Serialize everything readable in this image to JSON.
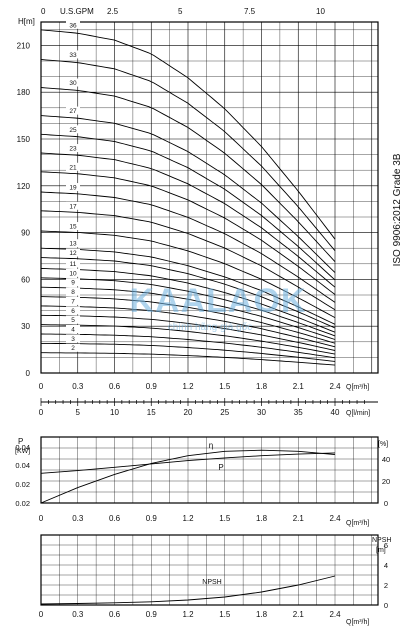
{
  "header": {
    "usgpm_label": "U.S.GPM",
    "usgpm_ticks": [
      "0",
      "2.5",
      "5",
      "7.5",
      "10"
    ]
  },
  "side_note": "ISO  9906:2012   Grade 3B",
  "watermark": {
    "title": "KAALAOK",
    "subtitle": "chính hãng giá gốc"
  },
  "chart_data": [
    {
      "type": "line",
      "id": "head",
      "ylabel": "H[m]",
      "xlabel": "Q[m³/h]",
      "ylim": [
        0,
        225
      ],
      "xlim": [
        0,
        2.4
      ],
      "yticks": [
        "0",
        "30",
        "60",
        "90",
        "120",
        "150",
        "180",
        "210"
      ],
      "xticks": [
        "0",
        "0.3",
        "0.6",
        "0.9",
        "1.2",
        "1.5",
        "1.8",
        "2.1",
        "2.4"
      ],
      "grid": true,
      "curve_x": [
        0,
        0.3,
        0.6,
        0.9,
        1.2,
        1.5,
        1.8,
        2.1,
        2.4
      ],
      "curve_rel": [
        1.0,
        0.99,
        0.97,
        0.93,
        0.86,
        0.77,
        0.66,
        0.53,
        0.39
      ],
      "series": [
        {
          "name": "36",
          "shutoff": 220
        },
        {
          "name": "33",
          "shutoff": 201
        },
        {
          "name": "30",
          "shutoff": 183
        },
        {
          "name": "27",
          "shutoff": 165
        },
        {
          "name": "25",
          "shutoff": 153
        },
        {
          "name": "23",
          "shutoff": 141
        },
        {
          "name": "21",
          "shutoff": 129
        },
        {
          "name": "19",
          "shutoff": 116
        },
        {
          "name": "17",
          "shutoff": 104
        },
        {
          "name": "15",
          "shutoff": 91
        },
        {
          "name": "13",
          "shutoff": 80
        },
        {
          "name": "12",
          "shutoff": 74
        },
        {
          "name": "11",
          "shutoff": 67
        },
        {
          "name": "10",
          "shutoff": 61
        },
        {
          "name": "9",
          "shutoff": 55
        },
        {
          "name": "8",
          "shutoff": 49
        },
        {
          "name": "7",
          "shutoff": 43
        },
        {
          "name": "6",
          "shutoff": 37
        },
        {
          "name": "5",
          "shutoff": 31
        },
        {
          "name": "4",
          "shutoff": 25
        },
        {
          "name": "3",
          "shutoff": 19
        },
        {
          "name": "2",
          "shutoff": 13
        }
      ],
      "secondary_axis": {
        "label": "Q[l/min]",
        "ticks": [
          "0",
          "5",
          "10",
          "15",
          "20",
          "25",
          "30",
          "35",
          "40"
        ],
        "range": [
          0,
          40
        ]
      }
    },
    {
      "type": "line",
      "id": "power",
      "ylabel_left": "P",
      "ylabel_left_unit": "[KW]",
      "ylabel_right": "[%]",
      "xlabel": "Q[m³/h]",
      "left_ticks": [
        "0.02",
        "0.02",
        "0.04",
        "0.04"
      ],
      "right_ticks": [
        "0",
        "20",
        "40"
      ],
      "right_ylim": [
        0,
        60
      ],
      "xticks": [
        "0",
        "0.3",
        "0.6",
        "0.9",
        "1.2",
        "1.5",
        "1.8",
        "2.1",
        "2.4"
      ],
      "xlim": [
        0,
        2.4
      ],
      "grid": true,
      "series": [
        {
          "name": "η",
          "axis": "right",
          "x": [
            0,
            0.3,
            0.6,
            0.9,
            1.2,
            1.5,
            1.8,
            2.1,
            2.4
          ],
          "y": [
            0,
            14,
            26,
            36,
            43,
            47,
            48,
            47,
            44
          ]
        },
        {
          "name": "P",
          "axis": "right",
          "x": [
            0,
            0.3,
            0.6,
            0.9,
            1.2,
            1.5,
            1.8,
            2.1,
            2.4
          ],
          "y": [
            27,
            29.5,
            32.5,
            35.5,
            38.5,
            41,
            43,
            44.5,
            45.5
          ]
        }
      ]
    },
    {
      "type": "line",
      "id": "npsh",
      "ylabel": "NPSH",
      "yunit": "[m]",
      "xlabel": "Q[m³/h]",
      "yticks": [
        "0",
        "2",
        "4",
        "6"
      ],
      "ylim": [
        0,
        7
      ],
      "xticks": [
        "0",
        "0.3",
        "0.6",
        "0.9",
        "1.2",
        "1.5",
        "1.8",
        "2.1",
        "2.4"
      ],
      "xlim": [
        0,
        2.4
      ],
      "grid": true,
      "series": [
        {
          "name": "NPSH",
          "x": [
            0,
            0.3,
            0.6,
            0.9,
            1.2,
            1.5,
            1.8,
            2.1,
            2.4
          ],
          "y": [
            0.1,
            0.15,
            0.22,
            0.32,
            0.5,
            0.8,
            1.3,
            2.0,
            2.9
          ]
        }
      ]
    }
  ]
}
